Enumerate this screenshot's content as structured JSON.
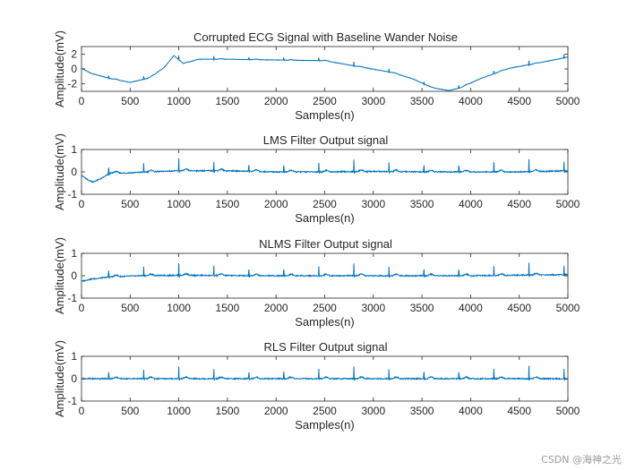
{
  "figure": {
    "watermark": "CSDN @海神之光"
  },
  "chart_data": [
    {
      "type": "line",
      "title": "Corrupted ECG Signal with Baseline Wander Noise",
      "xlabel": "Samples(n)",
      "ylabel": "Amplitude(mV)",
      "xlim": [
        0,
        5000
      ],
      "ylim": [
        -3,
        3
      ],
      "xticks": [
        0,
        500,
        1000,
        1500,
        2000,
        2500,
        3000,
        3500,
        4000,
        4500,
        5000
      ],
      "yticks": [
        -2,
        0,
        2
      ],
      "line_color": "#0072BD",
      "baseline_x": [
        0,
        100,
        300,
        500,
        700,
        850,
        950,
        1050,
        1200,
        1500,
        2000,
        2500,
        2900,
        3200,
        3400,
        3600,
        3780,
        3900,
        4100,
        4400,
        4700,
        5000
      ],
      "baseline_y": [
        0.1,
        -0.6,
        -1.3,
        -1.8,
        -1.2,
        0.2,
        1.8,
        0.7,
        1.3,
        1.3,
        1.2,
        1.1,
        0.2,
        -0.5,
        -1.3,
        -2.5,
        -2.9,
        -2.5,
        -1.3,
        0.1,
        0.8,
        1.6
      ],
      "beat_amplitude": 0.55
    },
    {
      "type": "line",
      "title": "LMS Filter Output signal",
      "xlabel": "Samples(n)",
      "ylabel": "Amplitude(mV)",
      "xlim": [
        0,
        5000
      ],
      "ylim": [
        -1,
        1
      ],
      "xticks": [
        0,
        500,
        1000,
        1500,
        2000,
        2500,
        3000,
        3500,
        4000,
        4500,
        5000
      ],
      "yticks": [
        -1,
        0,
        1
      ],
      "line_color": "#0072BD",
      "baseline_x": [
        0,
        60,
        120,
        200,
        300,
        450,
        700,
        1000,
        1500,
        2000,
        2500,
        3000,
        3500,
        4000,
        4500,
        5000
      ],
      "baseline_y": [
        -0.15,
        -0.35,
        -0.45,
        -0.3,
        -0.05,
        -0.05,
        0.0,
        0.05,
        0.05,
        0.0,
        0.0,
        0.02,
        0.0,
        0.0,
        0.0,
        0.05
      ],
      "beat_amplitude": 0.55
    },
    {
      "type": "line",
      "title": "NLMS Filter Output signal",
      "xlabel": "Samples(n)",
      "ylabel": "Amplitude(mV)",
      "xlim": [
        0,
        5000
      ],
      "ylim": [
        -1,
        1
      ],
      "xticks": [
        0,
        500,
        1000,
        1500,
        2000,
        2500,
        3000,
        3500,
        4000,
        4500,
        5000
      ],
      "yticks": [
        -1,
        0,
        1
      ],
      "line_color": "#0072BD",
      "baseline_x": [
        0,
        100,
        300,
        600,
        1000,
        2000,
        3000,
        4000,
        5000
      ],
      "baseline_y": [
        -0.25,
        -0.15,
        -0.05,
        0.0,
        0.02,
        0.0,
        0.0,
        0.0,
        0.05
      ],
      "beat_amplitude": 0.55
    },
    {
      "type": "line",
      "title": "RLS Filter Output signal",
      "xlabel": "Samples(n)",
      "ylabel": "Amplitude(mV)",
      "xlim": [
        0,
        5000
      ],
      "ylim": [
        -1,
        1
      ],
      "xticks": [
        0,
        500,
        1000,
        1500,
        2000,
        2500,
        3000,
        3500,
        4000,
        4500,
        5000
      ],
      "yticks": [
        -1,
        0,
        1
      ],
      "line_color": "#0072BD",
      "baseline_x": [
        0,
        5000
      ],
      "baseline_y": [
        0.0,
        0.0
      ],
      "beat_amplitude": 0.55
    }
  ]
}
